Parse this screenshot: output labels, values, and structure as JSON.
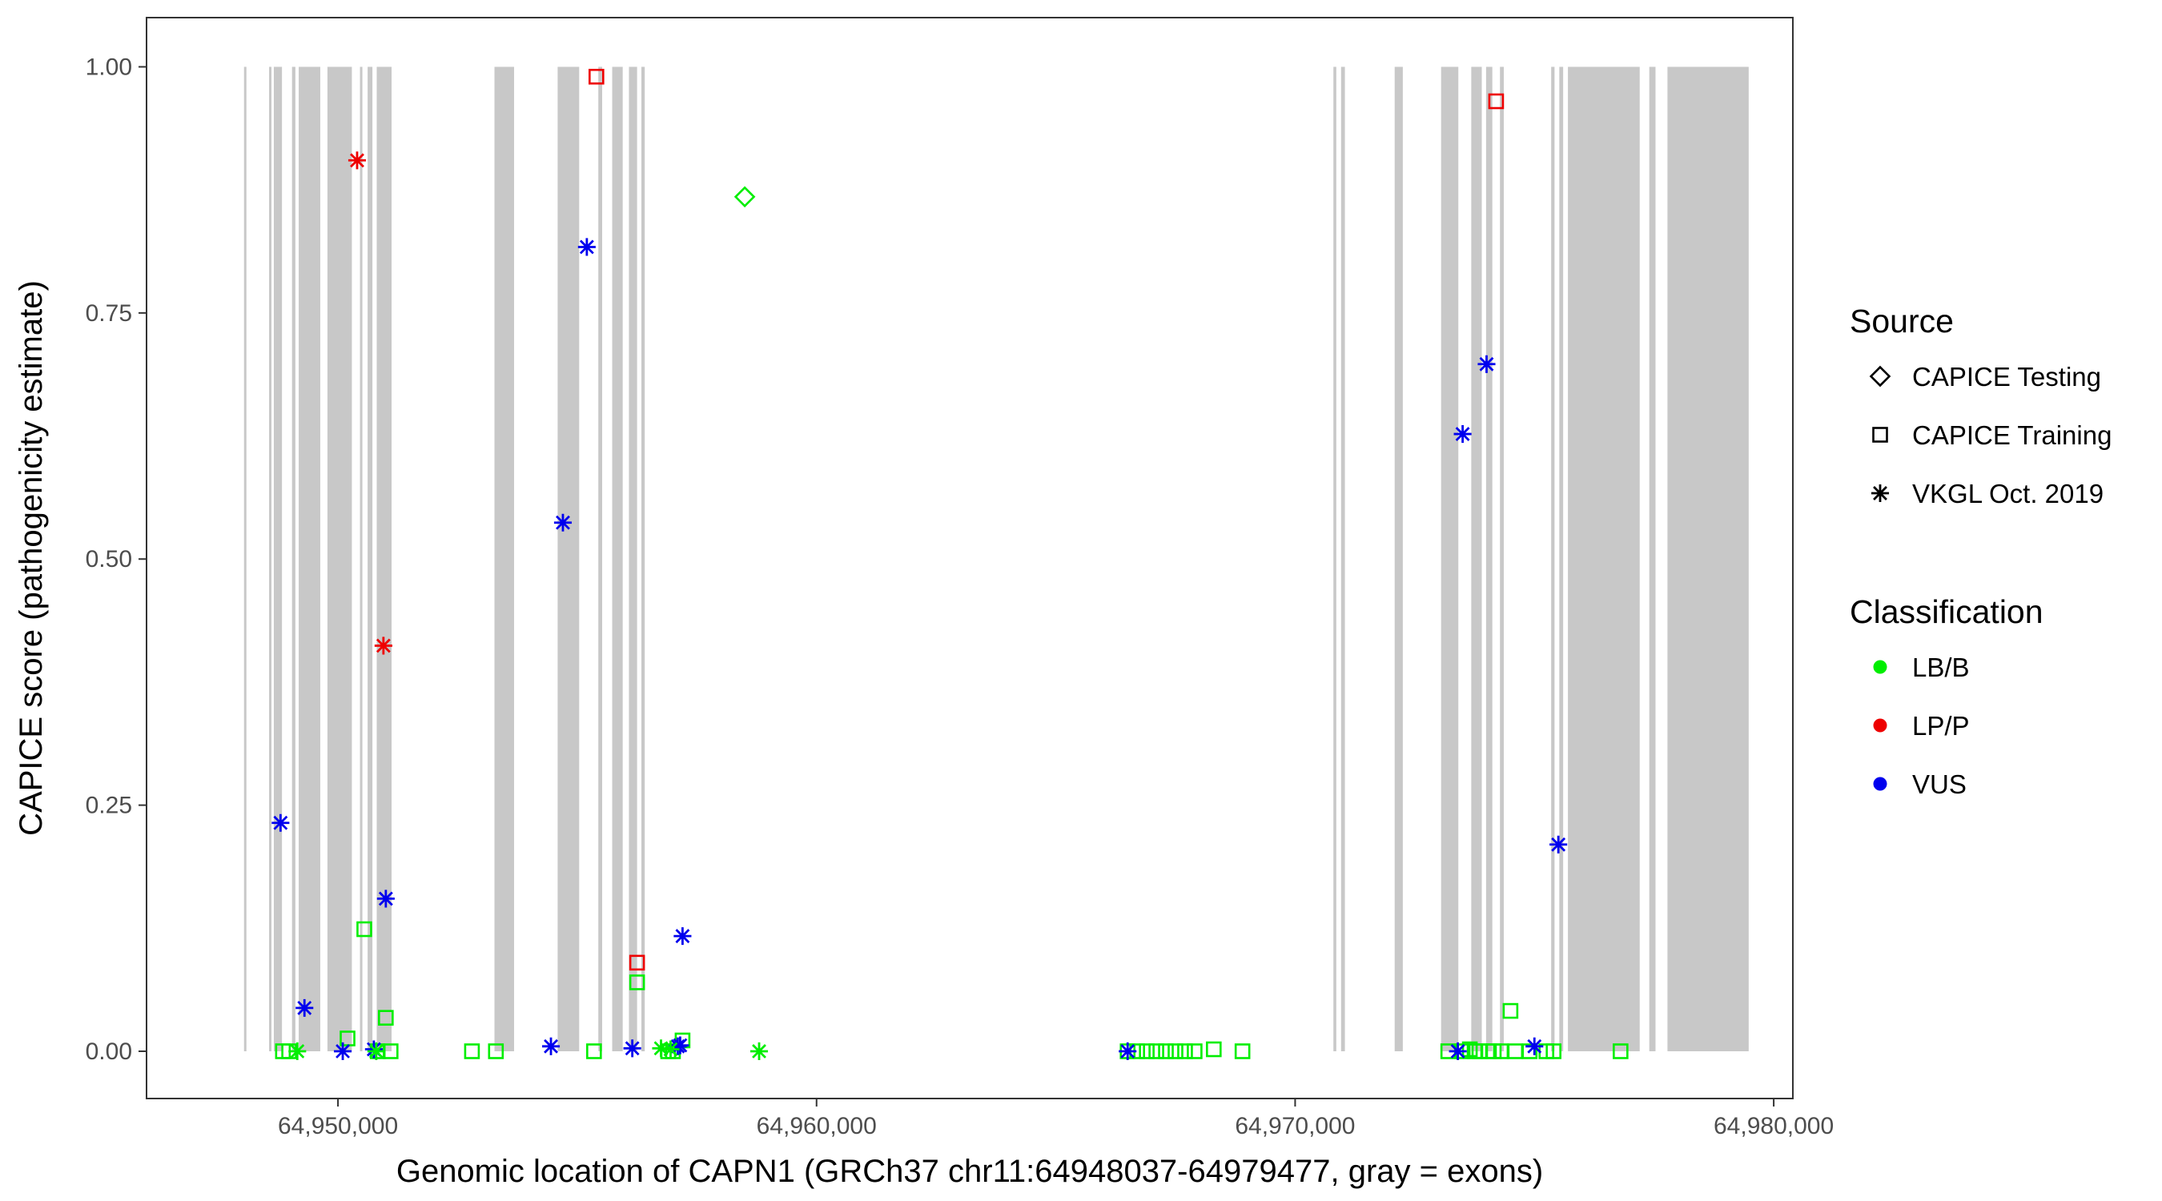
{
  "chart_data": {
    "type": "scatter",
    "title": "",
    "xlabel": "Genomic location of CAPN1 (GRCh37 chr11:64948037-64979477, gray = exons)",
    "ylabel": "CAPICE score (pathogenicity estimate)",
    "xlim": [
      64946000,
      64980400
    ],
    "ylim": [
      -0.048,
      1.05
    ],
    "x_ticks": [
      64950000,
      64960000,
      64970000,
      64980000
    ],
    "x_tick_labels": [
      "64,950,000",
      "64,960,000",
      "64,970,000",
      "64,980,000"
    ],
    "y_ticks": [
      0,
      0.25,
      0.5,
      0.75,
      1.0
    ],
    "y_tick_labels": [
      "0.00",
      "0.25",
      "0.50",
      "0.75",
      "1.00"
    ],
    "grid": false,
    "exon_fill": "#c8c8c8",
    "exons": [
      [
        64948037,
        64948087
      ],
      [
        64948560,
        64948610
      ],
      [
        64948660,
        64948830
      ],
      [
        64949040,
        64949110
      ],
      [
        64949180,
        64949630
      ],
      [
        64949780,
        64950290
      ],
      [
        64950460,
        64950500
      ],
      [
        64950620,
        64950720
      ],
      [
        64950810,
        64951120
      ],
      [
        64953270,
        64953680
      ],
      [
        64954590,
        64955040
      ],
      [
        64955440,
        64955520
      ],
      [
        64955730,
        64955950
      ],
      [
        64956080,
        64956250
      ],
      [
        64956340,
        64956410
      ],
      [
        64970800,
        64970860
      ],
      [
        64970960,
        64971040
      ],
      [
        64972080,
        64972250
      ],
      [
        64973050,
        64973410
      ],
      [
        64973680,
        64973900
      ],
      [
        64973990,
        64974120
      ],
      [
        64974280,
        64974360
      ],
      [
        64975350,
        64975420
      ],
      [
        64975520,
        64975600
      ],
      [
        64975700,
        64977200
      ],
      [
        64977400,
        64977530
      ],
      [
        64977780,
        64979477
      ]
    ],
    "legend": {
      "placement": "right",
      "shape_title": "Source",
      "shape_entries": [
        {
          "label": "CAPICE Testing",
          "shape": "diamond"
        },
        {
          "label": "CAPICE Training",
          "shape": "square"
        },
        {
          "label": "VKGL Oct. 2019",
          "shape": "asterisk"
        }
      ],
      "color_title": "Classification",
      "color_entries": [
        {
          "label": "LB/B",
          "color": "#00ee00"
        },
        {
          "label": "LP/P",
          "color": "#ee0000"
        },
        {
          "label": "VUS",
          "color": "#0000ee"
        }
      ]
    },
    "series": [
      {
        "source": "CAPICE Testing",
        "classification": "LB/B",
        "points": [
          [
            64958500,
            0.868
          ]
        ]
      },
      {
        "source": "CAPICE Training",
        "classification": "LP/P",
        "points": [
          [
            64955400,
            0.99
          ],
          [
            64974200,
            0.965
          ],
          [
            64956250,
            0.09
          ]
        ]
      },
      {
        "source": "CAPICE Training",
        "classification": "LB/B",
        "points": [
          [
            64950550,
            0.124
          ],
          [
            64951000,
            0.034
          ],
          [
            64956250,
            0.07
          ],
          [
            64957200,
            0.011
          ],
          [
            64950200,
            0.013
          ],
          [
            64950830,
            0.0
          ],
          [
            64951100,
            0.0
          ],
          [
            64948850,
            0.0
          ],
          [
            64948980,
            0.0
          ],
          [
            64952800,
            0.0
          ],
          [
            64953300,
            0.0
          ],
          [
            64955350,
            0.0
          ],
          [
            64956900,
            0.0
          ],
          [
            64957000,
            0.0
          ],
          [
            64966500,
            0.0
          ],
          [
            64966700,
            0.0
          ],
          [
            64966900,
            0.0
          ],
          [
            64967100,
            0.0
          ],
          [
            64967300,
            0.0
          ],
          [
            64967500,
            0.0
          ],
          [
            64967700,
            0.0
          ],
          [
            64967900,
            0.0
          ],
          [
            64968300,
            0.002
          ],
          [
            64968900,
            0.0
          ],
          [
            64973200,
            0.0
          ],
          [
            64973500,
            0.0
          ],
          [
            64973650,
            0.002
          ],
          [
            64973750,
            0.0
          ],
          [
            64973850,
            0.0
          ],
          [
            64974050,
            0.0
          ],
          [
            64974150,
            0.0
          ],
          [
            64974300,
            0.0
          ],
          [
            64974500,
            0.041
          ],
          [
            64974600,
            0.0
          ],
          [
            64974900,
            0.0
          ],
          [
            64975250,
            0.0
          ],
          [
            64975400,
            0.0
          ],
          [
            64976800,
            0.0
          ]
        ]
      },
      {
        "source": "VKGL Oct. 2019",
        "classification": "LP/P",
        "points": [
          [
            64950400,
            0.905
          ],
          [
            64950950,
            0.412
          ]
        ]
      },
      {
        "source": "VKGL Oct. 2019",
        "classification": "VUS",
        "points": [
          [
            64955200,
            0.817
          ],
          [
            64954700,
            0.537
          ],
          [
            64948800,
            0.232
          ],
          [
            64951000,
            0.155
          ],
          [
            64949300,
            0.044
          ],
          [
            64957200,
            0.117
          ],
          [
            64950100,
            0.0
          ],
          [
            64950750,
            0.002
          ],
          [
            64954450,
            0.005
          ],
          [
            64956150,
            0.003
          ],
          [
            64957100,
            0.005
          ],
          [
            64957150,
            0.006
          ],
          [
            64966500,
            0.0
          ],
          [
            64974000,
            0.698
          ],
          [
            64973500,
            0.627
          ],
          [
            64975500,
            0.21
          ],
          [
            64973400,
            0.0
          ],
          [
            64975000,
            0.005
          ]
        ]
      },
      {
        "source": "VKGL Oct. 2019",
        "classification": "LB/B",
        "points": [
          [
            64949150,
            0.0
          ],
          [
            64950800,
            0.0
          ],
          [
            64956750,
            0.003
          ],
          [
            64956950,
            0.002
          ],
          [
            64958800,
            0.0
          ]
        ]
      }
    ]
  }
}
